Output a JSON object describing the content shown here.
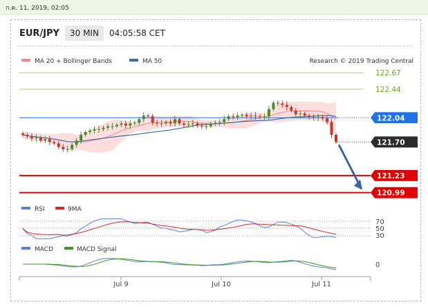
{
  "timestamp": "ก.ค. 11, 2019, 02:05",
  "header": {
    "pair": "EUR/JPY",
    "timeframe": "30 MIN",
    "time": "04:05:58 CET"
  },
  "research": "Research © 2019 Trading Central",
  "colors": {
    "ma20": "#f08a8a",
    "ma50": "#3a6ea5",
    "band": "#fbd3d3",
    "up": "#4a8a2a",
    "down": "#c0392b",
    "resistance": "#6aaa1f",
    "pivot": "#1e73e8",
    "support": "#e00000",
    "last": "#2b2b2b",
    "rsi": "#5b7fd0",
    "rsi9ma": "#d22b2b",
    "macd": "#5b7fd0",
    "macdSignal": "#3c9a1c"
  },
  "chart_data": [
    {
      "type": "candlestick",
      "legend": [
        "MA 20 + Bollinger Bands",
        "MA 50"
      ],
      "x_ticks": [
        "Jul 9",
        "Jul 10",
        "Jul 11"
      ],
      "y_range": [
        120.88,
        122.74
      ],
      "levels": [
        {
          "value": 122.67,
          "label": "122.67",
          "kind": "resistance"
        },
        {
          "value": 122.44,
          "label": "122.44",
          "kind": "resistance"
        },
        {
          "value": 122.04,
          "label": "122.04",
          "kind": "pivot"
        },
        {
          "value": 121.7,
          "label": "121.70",
          "kind": "last"
        },
        {
          "value": 121.23,
          "label": "121.23",
          "kind": "support"
        },
        {
          "value": 120.99,
          "label": "120.99",
          "kind": "support"
        }
      ],
      "close_series": [
        121.8,
        121.78,
        121.75,
        121.76,
        121.72,
        121.74,
        121.7,
        121.68,
        121.63,
        121.6,
        121.6,
        121.66,
        121.72,
        121.8,
        121.84,
        121.86,
        121.88,
        121.88,
        121.9,
        121.92,
        121.92,
        121.94,
        121.96,
        121.93,
        121.96,
        121.97,
        122.02,
        122.07,
        122.06,
        121.97,
        121.96,
        121.96,
        121.98,
        121.96,
        122.02,
        121.96,
        121.94,
        121.95,
        121.96,
        121.93,
        121.92,
        121.92,
        121.96,
        121.97,
        121.98,
        122.02,
        122.06,
        122.05,
        122.07,
        122.08,
        122.06,
        122.07,
        122.06,
        122.05,
        122.06,
        122.16,
        122.25,
        122.24,
        122.22,
        122.19,
        122.14,
        122.09,
        122.1,
        122.07,
        122.05,
        122.04,
        122.05,
        122.03,
        121.98,
        121.8,
        121.7
      ],
      "projection": {
        "from": 121.7,
        "to": 120.99
      }
    },
    {
      "type": "line",
      "legend": [
        "RSI",
        "9MA"
      ],
      "y_ticks": [
        70,
        50,
        30
      ]
    },
    {
      "type": "line",
      "legend": [
        "MACD",
        "MACD Signal"
      ],
      "y_ticks": [
        0
      ]
    }
  ]
}
